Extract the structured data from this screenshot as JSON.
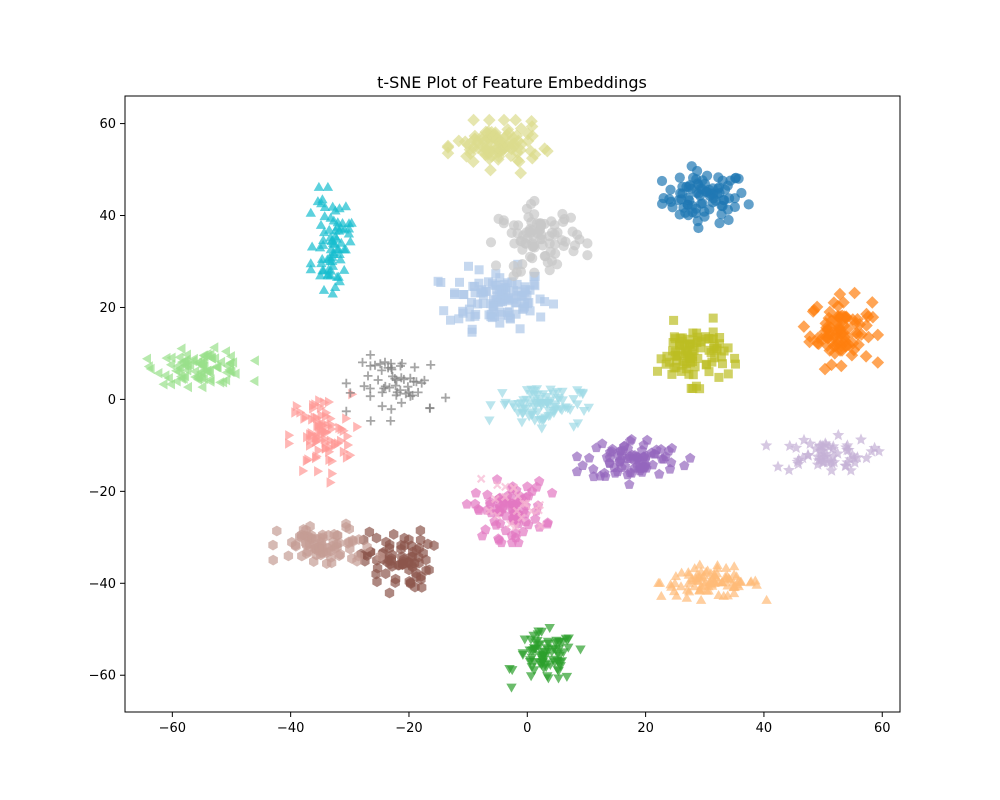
{
  "chart_data": {
    "type": "scatter",
    "title": "t-SNE Plot of Feature Embeddings",
    "xlabel": "",
    "ylabel": "",
    "xlim": [
      -68,
      63
    ],
    "ylim": [
      -68,
      66
    ],
    "x_ticks": [
      -60,
      -40,
      -20,
      0,
      20,
      40,
      60
    ],
    "y_ticks": [
      -60,
      -40,
      -20,
      0,
      20,
      40,
      60
    ],
    "grid": false,
    "legend": "none",
    "series": [
      {
        "color": "#1f77b4",
        "marker": "circle",
        "center": [
          30,
          44
        ],
        "spread": [
          3.5,
          2.8
        ],
        "count": 85
      },
      {
        "color": "#aec7e8",
        "marker": "square",
        "center": [
          -5,
          22
        ],
        "spread": [
          4.2,
          3.2
        ],
        "count": 110
      },
      {
        "color": "#ff7f0e",
        "marker": "diamond",
        "center": [
          53,
          15
        ],
        "spread": [
          2.6,
          3.5
        ],
        "count": 90
      },
      {
        "color": "#ffbb78",
        "marker": "triangle-up",
        "center": [
          31,
          -40
        ],
        "spread": [
          4.2,
          1.6
        ],
        "count": 90
      },
      {
        "color": "#2ca02c",
        "marker": "triangle-down",
        "center": [
          3,
          -56
        ],
        "spread": [
          2.5,
          2.7
        ],
        "count": 80
      },
      {
        "color": "#98df8a",
        "marker": "triangle-left",
        "center": [
          -55,
          7
        ],
        "spread": [
          3.8,
          1.8
        ],
        "count": 90
      },
      {
        "color": "#ff9896",
        "marker": "triangle-right",
        "center": [
          -35,
          -8
        ],
        "spread": [
          2.6,
          4.5
        ],
        "count": 80
      },
      {
        "color": "#9467bd",
        "marker": "pentagon",
        "center": [
          18,
          -13
        ],
        "spread": [
          4.0,
          2.3
        ],
        "count": 85
      },
      {
        "color": "#c5b0d5",
        "marker": "star",
        "center": [
          50,
          -12
        ],
        "spread": [
          4.0,
          1.8
        ],
        "count": 60
      },
      {
        "color": "#8c564b",
        "marker": "hexagon",
        "center": [
          -22,
          -35
        ],
        "spread": [
          2.8,
          3.2
        ],
        "count": 75
      },
      {
        "color": "#c49c94",
        "marker": "hexagon",
        "center": [
          -34,
          -32
        ],
        "spread": [
          4.0,
          2.3
        ],
        "count": 75
      },
      {
        "color": "#e377c2",
        "marker": "pentagon",
        "center": [
          -3,
          -24
        ],
        "spread": [
          3.0,
          3.0
        ],
        "count": 85
      },
      {
        "color": "#f7b6d2",
        "marker": "x",
        "center": [
          -3,
          -24
        ],
        "spread": [
          3.0,
          3.0
        ],
        "count": 20
      },
      {
        "color": "#7f7f7f",
        "marker": "plus",
        "center": [
          -21,
          3
        ],
        "spread": [
          4.0,
          3.2
        ],
        "count": 55
      },
      {
        "color": "#c7c7c7",
        "marker": "circle",
        "center": [
          2,
          35
        ],
        "spread": [
          3.4,
          3.4
        ],
        "count": 85
      },
      {
        "color": "#bcbd22",
        "marker": "square",
        "center": [
          28,
          10
        ],
        "spread": [
          3.0,
          3.2
        ],
        "count": 90
      },
      {
        "color": "#dbdb8d",
        "marker": "diamond",
        "center": [
          -5,
          55
        ],
        "spread": [
          3.5,
          2.4
        ],
        "count": 100
      },
      {
        "color": "#17becf",
        "marker": "triangle-up",
        "center": [
          -33,
          34
        ],
        "spread": [
          1.5,
          5.0
        ],
        "count": 75
      },
      {
        "color": "#9edae5",
        "marker": "triangle-down",
        "center": [
          2,
          -1
        ],
        "spread": [
          3.5,
          2.2
        ],
        "count": 85
      }
    ]
  }
}
